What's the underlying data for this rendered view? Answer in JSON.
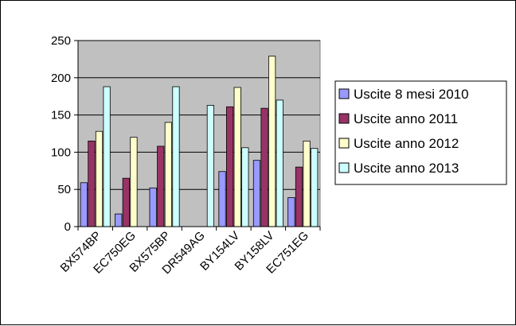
{
  "colors": {
    "plot_background": "#c0c0c0",
    "series": [
      "#9999ff",
      "#993366",
      "#ffffcc",
      "#ccffff"
    ]
  },
  "chart_data": {
    "type": "bar",
    "categories": [
      "BX574BP",
      "EC750EG",
      "BX575BP",
      "DR549AG",
      "BY154LV",
      "BY158LV",
      "EC751EG"
    ],
    "series": [
      {
        "name": "Uscite  8 mesi 2010",
        "values": [
          59,
          17,
          52,
          null,
          74,
          89,
          39
        ]
      },
      {
        "name": "Uscite anno 2011",
        "values": [
          115,
          65,
          108,
          null,
          161,
          159,
          80
        ]
      },
      {
        "name": "Uscite anno 2012",
        "values": [
          128,
          120,
          140,
          null,
          187,
          229,
          115
        ]
      },
      {
        "name": "Uscite anno 2013",
        "values": [
          188,
          null,
          188,
          163,
          106,
          170,
          105
        ]
      }
    ],
    "ylim": [
      0,
      250
    ],
    "yticks": [
      "0",
      "50",
      "100",
      "150",
      "200",
      "250"
    ],
    "grid": true,
    "legend_position": "right"
  }
}
